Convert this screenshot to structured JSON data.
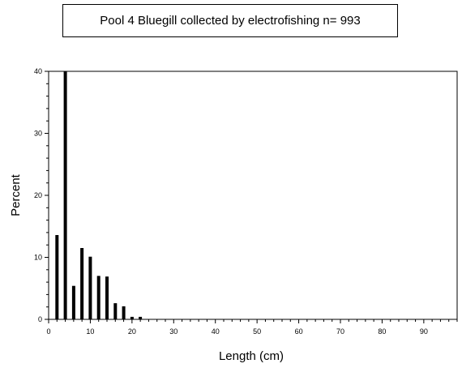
{
  "chart_data": {
    "type": "bar",
    "title": "Pool 4 Bluegill collected by electrofishing n= 993",
    "xlabel": "Length (cm)",
    "ylabel": "Percent",
    "xlim": [
      0,
      98
    ],
    "ylim": [
      0,
      40
    ],
    "x_ticks": [
      0,
      10,
      20,
      30,
      40,
      50,
      60,
      70,
      80,
      90
    ],
    "y_ticks": [
      0,
      10,
      20,
      30,
      40
    ],
    "x_minor_step": 2,
    "y_minor_step": 2,
    "bar_color": "#000000",
    "x": [
      2,
      4,
      6,
      8,
      10,
      12,
      14,
      16,
      18,
      20,
      22
    ],
    "values": [
      13.6,
      40.0,
      5.4,
      11.5,
      10.1,
      7.0,
      6.9,
      2.6,
      2.1,
      0.4,
      0.4
    ]
  }
}
